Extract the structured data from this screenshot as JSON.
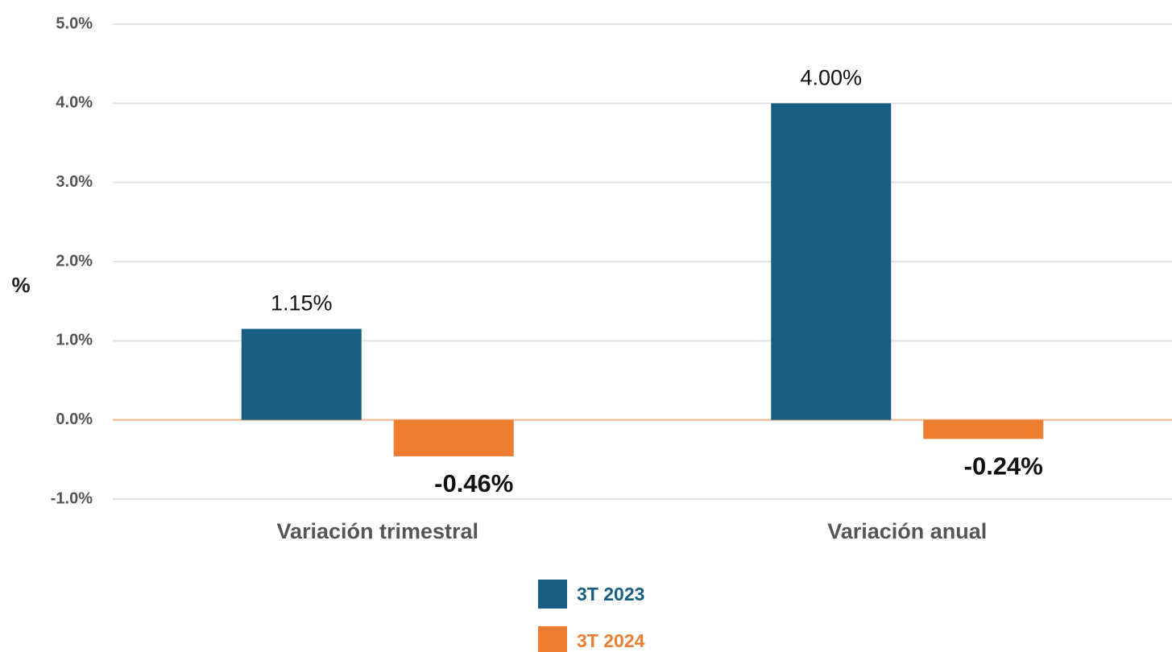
{
  "chart_data": {
    "type": "bar",
    "y_label": "%",
    "categories": [
      "Variación trimestral",
      "Variación anual"
    ],
    "series": [
      {
        "name": "3T 2023",
        "color": "#175e82",
        "values": [
          1.15,
          4.0
        ],
        "value_labels": [
          "1.15%",
          "4.00%"
        ]
      },
      {
        "name": "3T 2024",
        "color": "#ed7d31",
        "values": [
          -0.46,
          -0.24
        ],
        "value_labels": [
          "-0.46%",
          "-0.24%"
        ]
      }
    ],
    "ylim": [
      -1,
      5
    ],
    "yticks": [
      {
        "value": -1,
        "label": "-1.0%"
      },
      {
        "value": 0,
        "label": "0.0%"
      },
      {
        "value": 1,
        "label": "1.0%"
      },
      {
        "value": 2,
        "label": "2.0%"
      },
      {
        "value": 3,
        "label": "3.0%"
      },
      {
        "value": 4,
        "label": "4.0%"
      },
      {
        "value": 5,
        "label": "5.0%"
      }
    ],
    "grid": true,
    "legend": "bottom"
  }
}
